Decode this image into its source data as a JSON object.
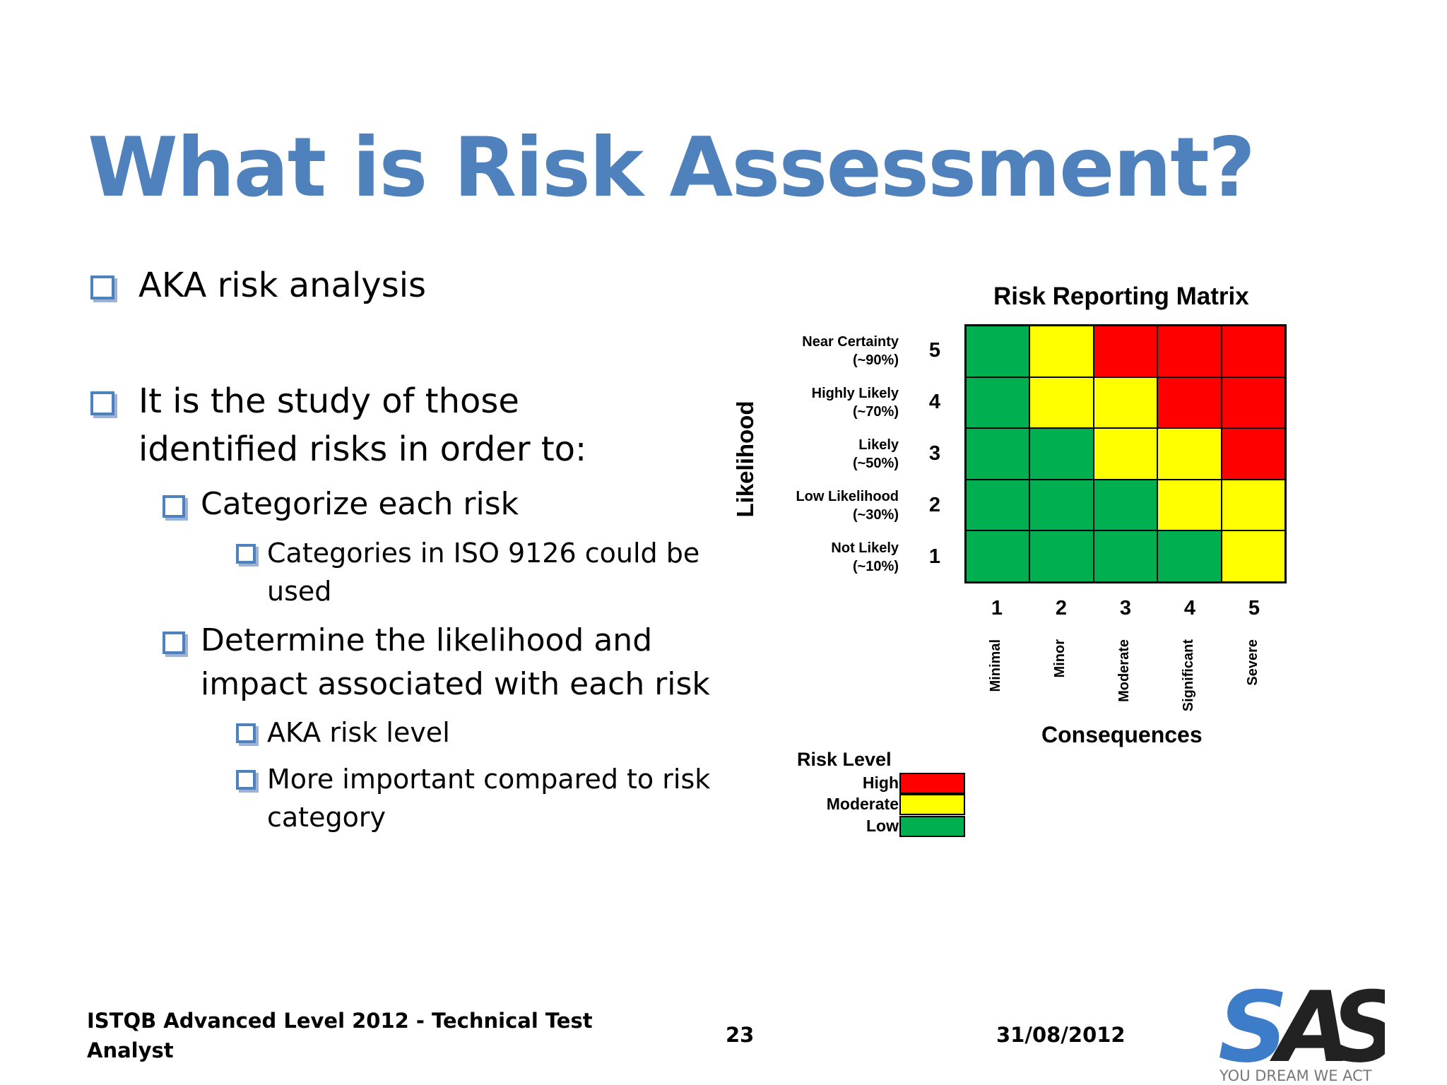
{
  "slide": {
    "title": "What is Risk Assessment?",
    "bullets": [
      {
        "level": 1,
        "text": "AKA risk analysis"
      },
      {
        "level": 1,
        "text": "It is the study of those identified risks in order to:"
      },
      {
        "level": 2,
        "text": "Categorize each risk"
      },
      {
        "level": 3,
        "text": "Categories in ISO 9126 could be used"
      },
      {
        "level": 2,
        "text": "Determine the likelihood and impact associated with each risk"
      },
      {
        "level": 3,
        "text": "AKA risk level"
      },
      {
        "level": 3,
        "text": "More important compared to risk category"
      }
    ]
  },
  "matrix": {
    "title": "Risk Reporting Matrix",
    "likelihood_label": "Likelihood",
    "consequences_label": "Consequences",
    "rows": [
      {
        "num": "5",
        "label": "Near Certainty",
        "pct": "(~90%)"
      },
      {
        "num": "4",
        "label": "Highly Likely",
        "pct": "(~70%)"
      },
      {
        "num": "3",
        "label": "Likely",
        "pct": "(~50%)"
      },
      {
        "num": "2",
        "label": "Low Likelihood",
        "pct": "(~30%)"
      },
      {
        "num": "1",
        "label": "Not Likely",
        "pct": "(~10%)"
      }
    ],
    "columns": [
      {
        "num": "1",
        "label": "Minimal"
      },
      {
        "num": "2",
        "label": "Minor"
      },
      {
        "num": "3",
        "label": "Moderate"
      },
      {
        "num": "4",
        "label": "Significant"
      },
      {
        "num": "5",
        "label": "Severe"
      }
    ],
    "cells": [
      [
        "low",
        "moderate",
        "high",
        "high",
        "high"
      ],
      [
        "low",
        "moderate",
        "moderate",
        "high",
        "high"
      ],
      [
        "low",
        "low",
        "moderate",
        "moderate",
        "high"
      ],
      [
        "low",
        "low",
        "low",
        "moderate",
        "moderate"
      ],
      [
        "low",
        "low",
        "low",
        "low",
        "moderate"
      ]
    ],
    "colors": {
      "high": "#ff0000",
      "moderate": "#ffff00",
      "low": "#00b050"
    }
  },
  "legend": {
    "title": "Risk Level",
    "items": [
      {
        "key": "high",
        "label": "High"
      },
      {
        "key": "moderate",
        "label": "Moderate"
      },
      {
        "key": "low",
        "label": "Low"
      }
    ]
  },
  "footer": {
    "course_line1": "ISTQB Advanced Level 2012 - Technical Test",
    "course_line2": "Analyst",
    "page_number": "23",
    "date": "31/08/2012"
  },
  "logo": {
    "letters": "SAS",
    "tagline": "YOU DREAM WE ACT",
    "colors": {
      "s1": "#3d7cc9",
      "a": "#222222",
      "s2": "#222222"
    }
  }
}
